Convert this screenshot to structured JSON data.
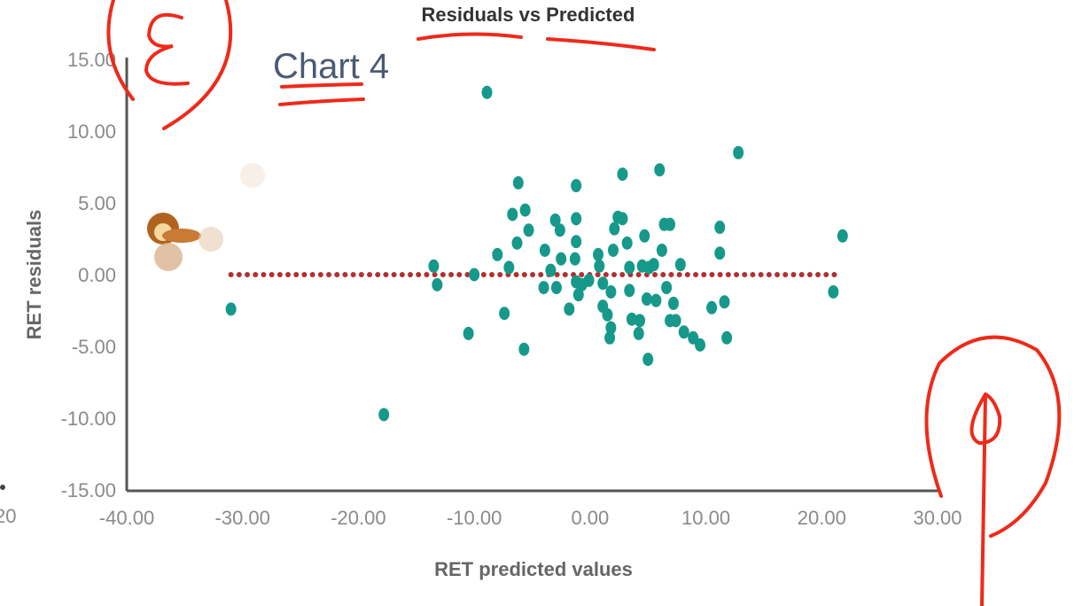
{
  "annotation": {
    "chart_label": "Chart 4",
    "edge_fragment": "20"
  },
  "colors": {
    "point": "#16998a",
    "zero_line": "#b03030",
    "axis": "#555555",
    "ink": "#ee2a1a"
  },
  "chart_data": {
    "type": "scatter",
    "title": "Residuals vs Predicted",
    "xlabel": "RET predicted values",
    "ylabel": "RET residuals",
    "xlim": [
      -40,
      30
    ],
    "ylim": [
      -15,
      15
    ],
    "xticks": [
      "-40.00",
      "-30.00",
      "-20.00",
      "-10.00",
      "0.00",
      "10.00",
      "20.00",
      "30.00"
    ],
    "yticks": [
      "15.00",
      "10.00",
      "5.00",
      "0.00",
      "-5.00",
      "-10.00",
      "-15.00"
    ],
    "reference_line": {
      "y": 0,
      "x_range": [
        -31,
        21.5
      ],
      "style": "dotted"
    },
    "points": [
      [
        -31.0,
        -2.4
      ],
      [
        -17.8,
        -9.75
      ],
      [
        -8.9,
        12.7
      ],
      [
        12.8,
        8.5
      ],
      [
        21.8,
        2.7
      ],
      [
        21.0,
        -1.2
      ],
      [
        -13.5,
        0.6
      ],
      [
        -13.2,
        -0.7
      ],
      [
        -10.5,
        -4.1
      ],
      [
        -10.0,
        0.0
      ],
      [
        -7.4,
        -2.7
      ],
      [
        -5.7,
        -5.2
      ],
      [
        -6.2,
        6.4
      ],
      [
        -6.7,
        4.2
      ],
      [
        -5.6,
        4.5
      ],
      [
        -5.3,
        3.1
      ],
      [
        -6.3,
        2.2
      ],
      [
        -8.0,
        1.4
      ],
      [
        -7.0,
        0.5
      ],
      [
        -3.9,
        1.7
      ],
      [
        -3.0,
        3.8
      ],
      [
        -2.6,
        3.1
      ],
      [
        -1.2,
        6.2
      ],
      [
        -1.2,
        3.9
      ],
      [
        -1.2,
        2.3
      ],
      [
        -2.5,
        1.1
      ],
      [
        -2.9,
        -0.9
      ],
      [
        -1.8,
        -2.4
      ],
      [
        -1.3,
        1.1
      ],
      [
        -1.2,
        -0.5
      ],
      [
        -0.7,
        -0.7
      ],
      [
        -0.1,
        -0.4
      ],
      [
        -1.0,
        -1.4
      ],
      [
        0.7,
        1.4
      ],
      [
        0.8,
        0.6
      ],
      [
        1.1,
        -2.2
      ],
      [
        1.5,
        -2.8
      ],
      [
        1.8,
        -3.7
      ],
      [
        1.7,
        -4.4
      ],
      [
        2.0,
        1.7
      ],
      [
        2.1,
        3.2
      ],
      [
        2.4,
        4.0
      ],
      [
        2.8,
        3.9
      ],
      [
        2.8,
        7.0
      ],
      [
        3.2,
        2.2
      ],
      [
        3.4,
        0.5
      ],
      [
        3.4,
        -1.1
      ],
      [
        3.6,
        -3.1
      ],
      [
        4.2,
        -4.1
      ],
      [
        4.3,
        -3.2
      ],
      [
        4.7,
        2.7
      ],
      [
        4.5,
        0.6
      ],
      [
        5.1,
        0.5
      ],
      [
        5.5,
        0.7
      ],
      [
        4.9,
        -1.7
      ],
      [
        5.7,
        -1.8
      ],
      [
        5.0,
        -5.9
      ],
      [
        6.0,
        7.3
      ],
      [
        6.2,
        1.7
      ],
      [
        6.6,
        -0.9
      ],
      [
        6.4,
        3.5
      ],
      [
        6.9,
        3.5
      ],
      [
        7.2,
        -2.0
      ],
      [
        7.8,
        0.7
      ],
      [
        6.9,
        -3.2
      ],
      [
        7.4,
        -3.2
      ],
      [
        8.1,
        -4.0
      ],
      [
        8.9,
        -4.4
      ],
      [
        9.5,
        -4.9
      ],
      [
        10.5,
        -2.3
      ],
      [
        11.2,
        3.3
      ],
      [
        11.2,
        1.5
      ],
      [
        11.6,
        -1.9
      ],
      [
        11.8,
        -4.4
      ],
      [
        1.1,
        -0.6
      ],
      [
        1.8,
        -1.2
      ],
      [
        -3.4,
        0.3
      ],
      [
        -4.0,
        -0.9
      ]
    ]
  }
}
